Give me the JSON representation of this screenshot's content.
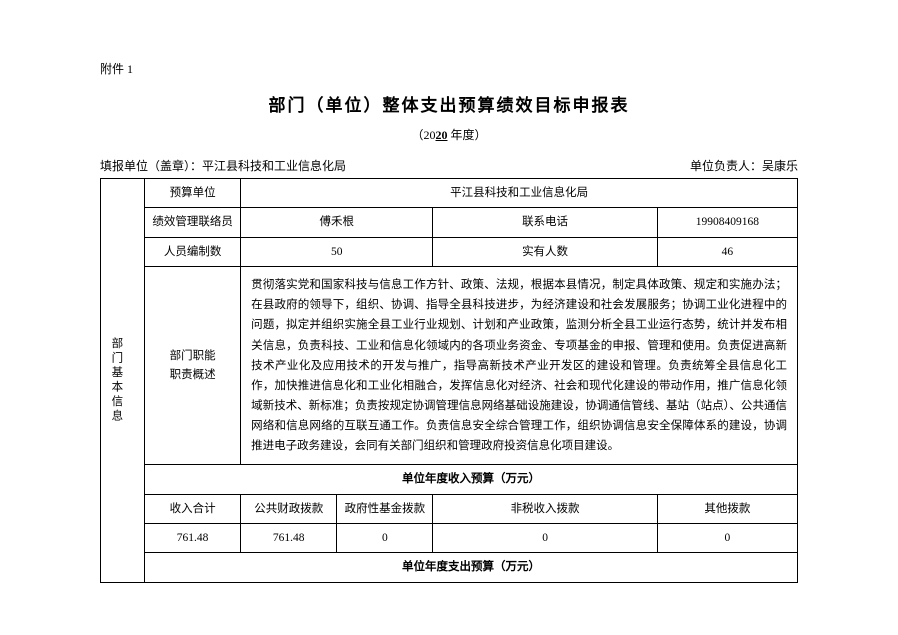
{
  "attachment_label": "附件 1",
  "title": "部门（单位）整体支出预算绩效目标申报表",
  "year_prefix": "（20",
  "year_value": "20",
  "year_suffix": " 年度）",
  "meta": {
    "filler_label": "填报单位（盖章）：",
    "filler_value": "平江县科技和工业信息化局",
    "responsible_label": "单位负责人：",
    "responsible_value": "吴康乐"
  },
  "basic": {
    "vheader": "部门基本信息",
    "budget_unit_label": "预算单位",
    "budget_unit_value": "平江县科技和工业信息化局",
    "contact_label": "绩效管理联络员",
    "contact_value": "傅禾根",
    "phone_label": "联系电话",
    "phone_value": "19908409168",
    "staff_plan_label": "人员编制数",
    "staff_plan_value": "50",
    "staff_actual_label": "实有人数",
    "staff_actual_value": "46",
    "duty_label": "部门职能\n职责概述",
    "duty_value": "贯彻落实党和国家科技与信息工作方针、政策、法规，根据本县情况，制定具体政策、规定和实施办法；在县政府的领导下，组织、协调、指导全县科技进步，为经济建设和社会发展服务；协调工业化进程中的问题，拟定并组织实施全县工业行业规划、计划和产业政策，监测分析全县工业运行态势，统计并发布相关信息，负责科技、工业和信息化领域内的各项业务资金、专项基金的申报、管理和使用。负责促进高新技术产业化及应用技术的开发与推广，指导高新技术产业开发区的建设和管理。负责统筹全县信息化工作，加快推进信息化和工业化相融合，发挥信息化对经济、社会和现代化建设的带动作用，推广信息化领域新技术、新标准；负责按规定协调管理信息网络基础设施建设，协调通信管线、基站（站点）、公共通信网络和信息网络的互联互通工作。负责信息安全综合管理工作，组织协调信息安全保障体系的建设，协调推进电子政务建设，会同有关部门组织和管理政府投资信息化项目建设。"
  },
  "income": {
    "section_header": "单位年度收入预算（万元）",
    "row_header": "收入合计",
    "col_fiscal": "公共财政拨款",
    "col_fund": "政府性基金拨款",
    "col_nontax": "非税收入拨款",
    "col_other": "其他拨款",
    "total": "761.48",
    "fiscal": "761.48",
    "fund": "0",
    "nontax": "0",
    "other": "0"
  },
  "outcome_header": "单位年度支出预算（万元）"
}
